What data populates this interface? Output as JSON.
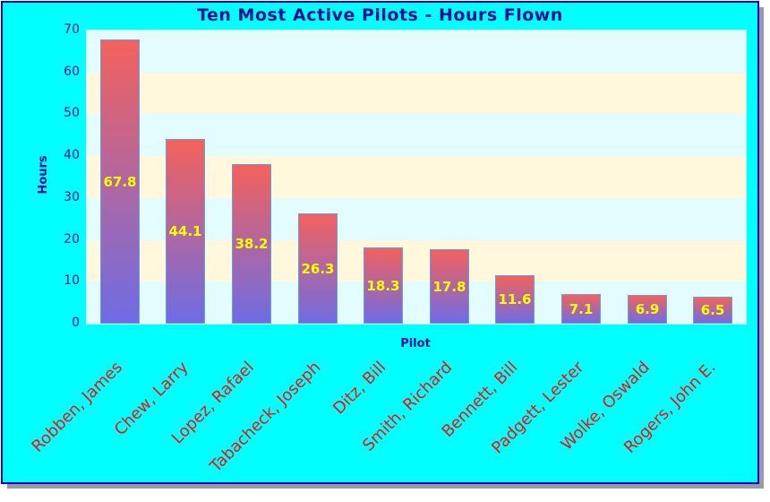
{
  "window": {
    "background": "#00FFFF",
    "border_color": "#0000DC",
    "shadow_color": "#9A9AA4"
  },
  "chart_data": {
    "type": "bar",
    "title": "Ten Most Active Pilots - Hours Flown",
    "xlabel": "Pilot",
    "ylabel": "Hours",
    "categories": [
      "Robben, James",
      "Chew, Larry",
      "Lopez, Rafael",
      "Tabacheck, Joseph",
      "Ditz, Bill",
      "Smith, Richard",
      "Bennett, Bill",
      "Padgett, Lester",
      "Wolke, Oswald",
      "Rogers, John E."
    ],
    "values": [
      67.8,
      44.1,
      38.2,
      26.3,
      18.3,
      17.8,
      11.6,
      7.1,
      6.9,
      6.5
    ],
    "value_labels": [
      "67.8",
      "44.1",
      "38.2",
      "26.3",
      "18.3",
      "17.8",
      "11.6",
      "7.1",
      "6.9",
      "6.5"
    ],
    "ylim": [
      0,
      70
    ],
    "yticks": [
      0,
      10,
      20,
      30,
      40,
      50,
      60,
      70
    ],
    "grid": "horizontal-bands-every-10",
    "legend": "none"
  },
  "style": {
    "title_color": "#101099",
    "axis_title_color": "#10109A",
    "tick_label_color": "#15159C",
    "category_label_color": "#EB1414",
    "value_label_color": "#FFFF00",
    "bar_gradient_top": "#F4615C",
    "bar_gradient_bottom": "#6E6CE4",
    "bar_border_color": "#64A0DC",
    "band_colors": [
      "#E2FCFF",
      "#FFF8DC"
    ]
  }
}
